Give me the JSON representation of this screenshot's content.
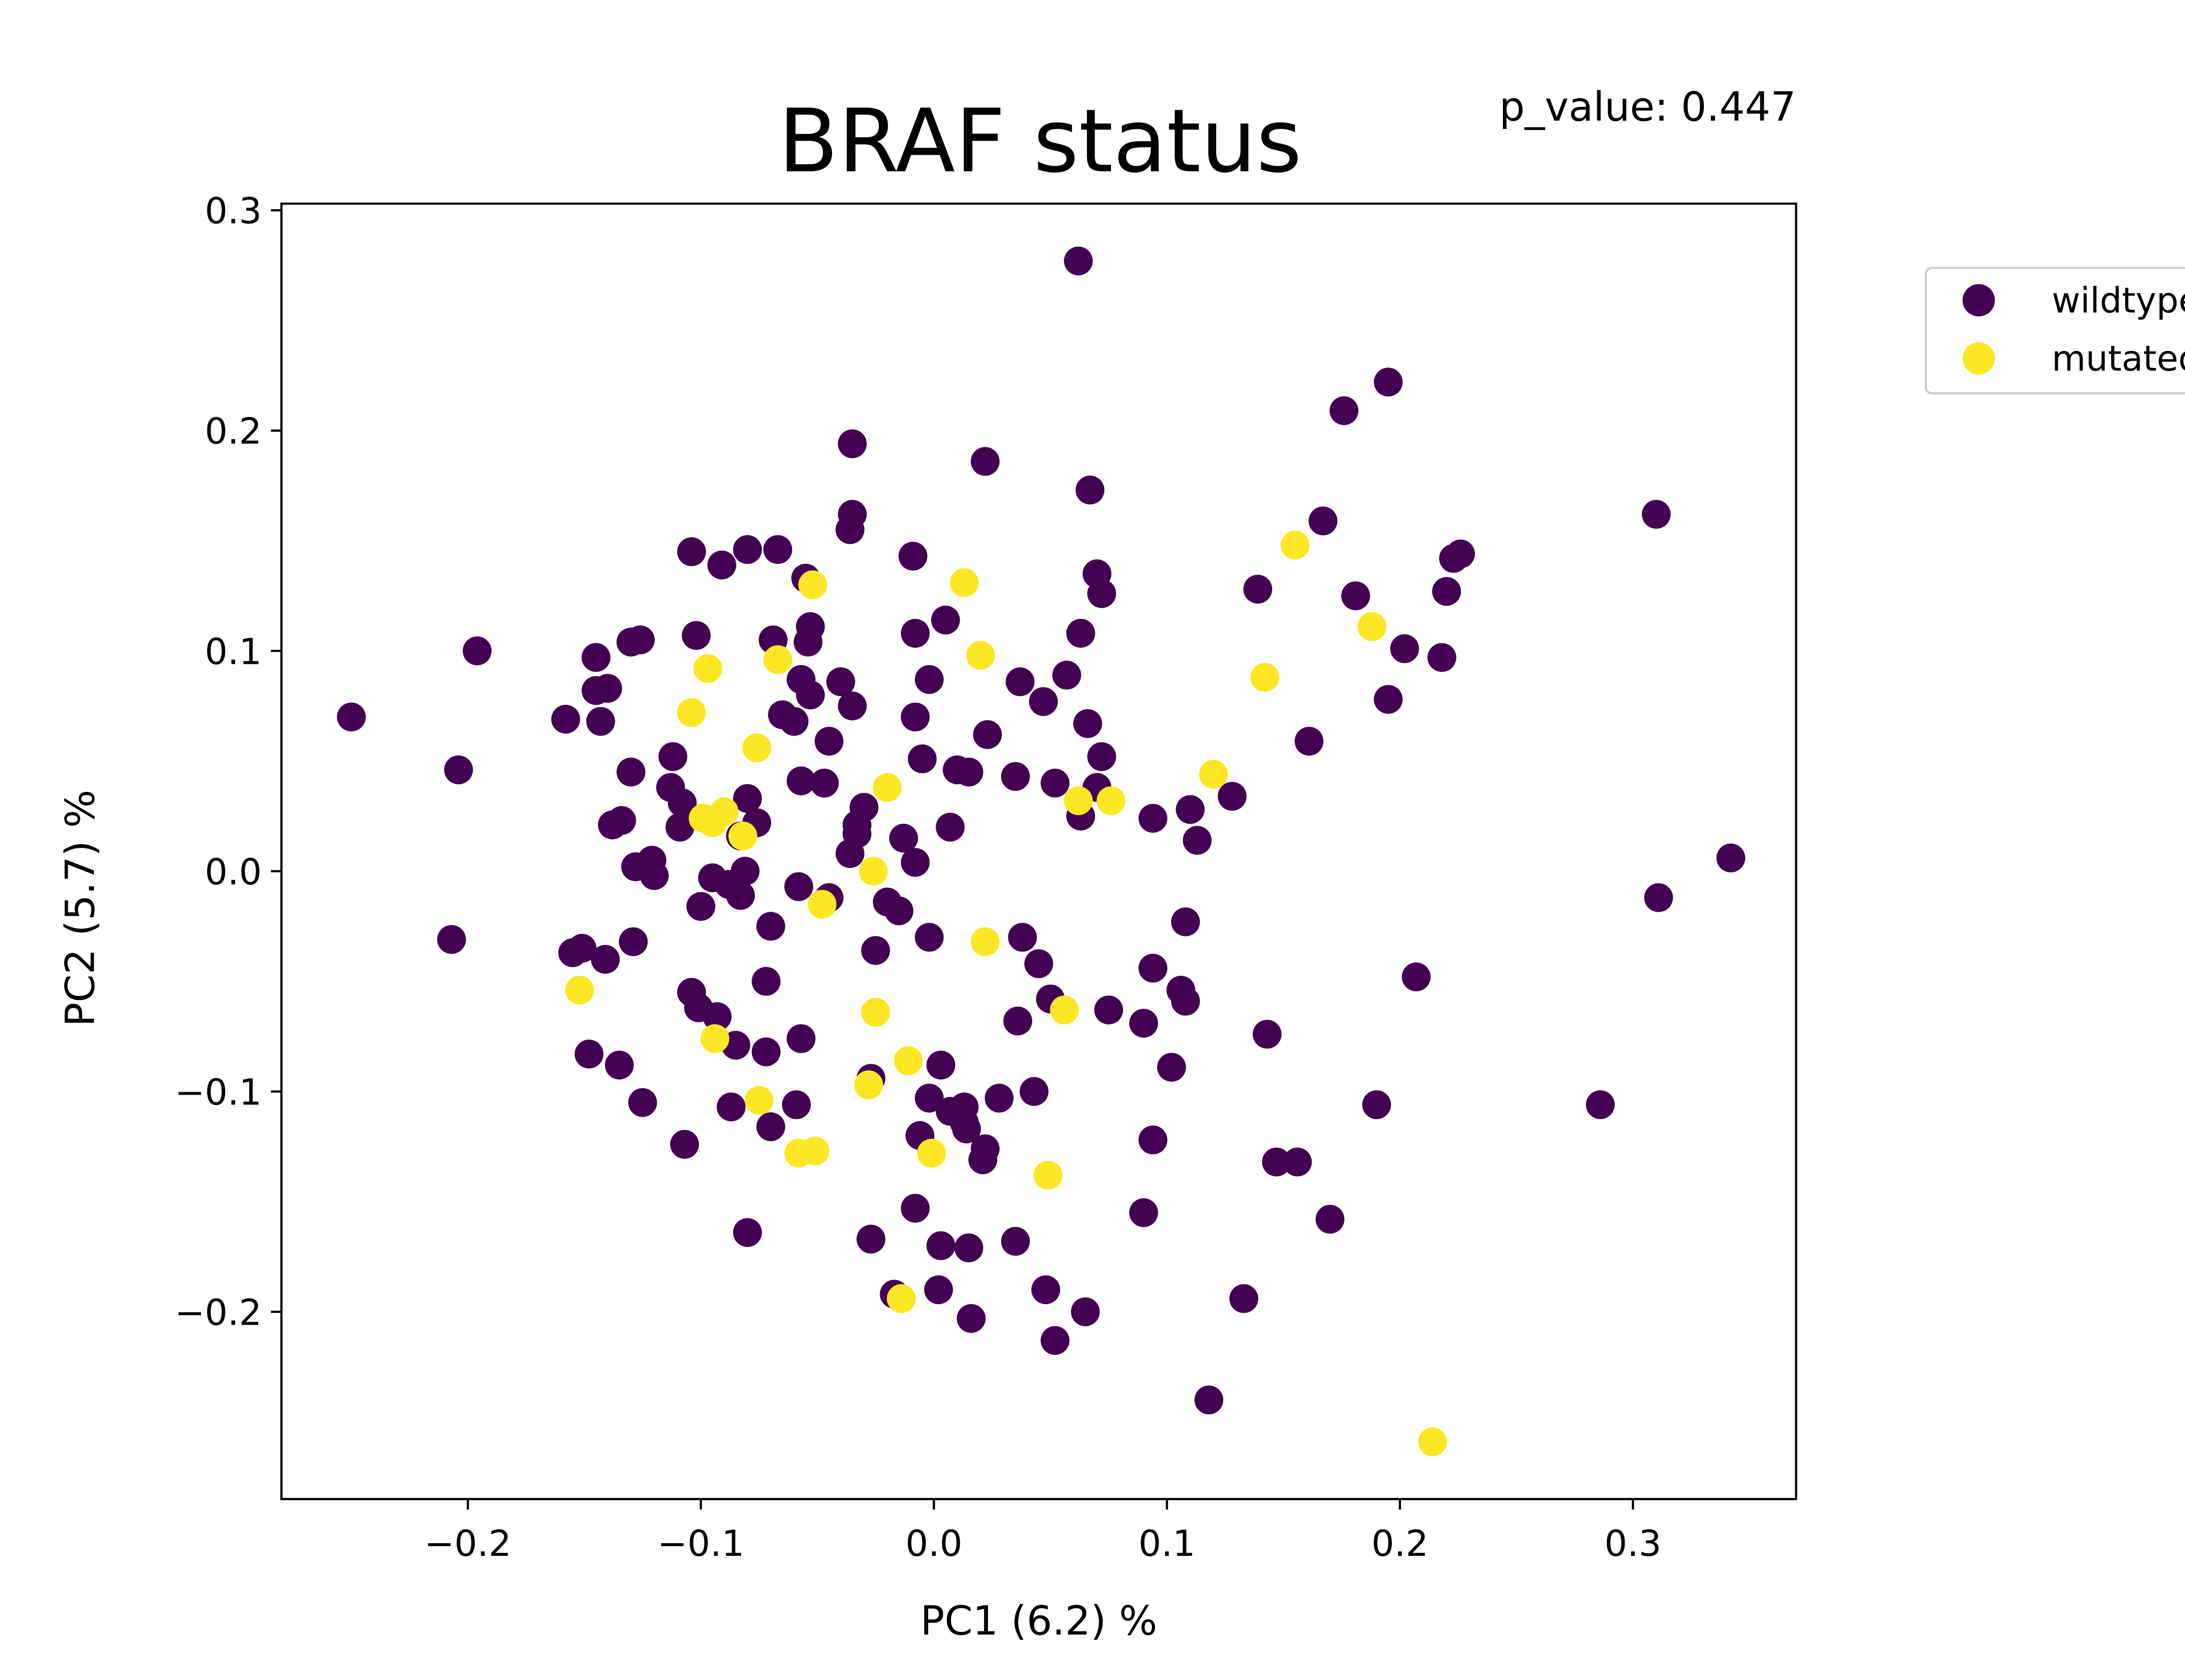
{
  "chart_data": {
    "type": "scatter",
    "title": "BRAF status",
    "annotation": "p_value: 0.447",
    "xlabel": "PC1 (6.2) %",
    "ylabel": "PC2 (5.7) %",
    "xlim": [
      -0.28,
      0.37
    ],
    "ylim": [
      -0.285,
      0.303
    ],
    "xticks": [
      -0.2,
      -0.1,
      0.0,
      0.1,
      0.2,
      0.3
    ],
    "xtick_labels": [
      "−0.2",
      "−0.1",
      "0.0",
      "0.1",
      "0.2",
      "0.3"
    ],
    "yticks": [
      -0.2,
      -0.1,
      0.0,
      0.1,
      0.2,
      0.3
    ],
    "ytick_labels": [
      "−0.2",
      "−0.1",
      "0.0",
      "0.1",
      "0.2",
      "0.3"
    ],
    "grid": false,
    "legend_position": "outside-top-right",
    "series": [
      {
        "name": "wildtype",
        "color": "#440154",
        "points": [
          [
            -0.25,
            0.07
          ],
          [
            -0.204,
            0.046
          ],
          [
            -0.196,
            0.1
          ],
          [
            -0.207,
            -0.031
          ],
          [
            -0.158,
            0.069
          ],
          [
            -0.145,
            0.097
          ],
          [
            -0.145,
            0.082
          ],
          [
            -0.14,
            0.083
          ],
          [
            -0.143,
            0.068
          ],
          [
            -0.13,
            0.104
          ],
          [
            -0.126,
            0.105
          ],
          [
            -0.13,
            0.045
          ],
          [
            -0.138,
            0.021
          ],
          [
            -0.134,
            0.023
          ],
          [
            -0.128,
            0.002
          ],
          [
            -0.121,
            0.005
          ],
          [
            -0.12,
            -0.002
          ],
          [
            -0.112,
            0.052
          ],
          [
            -0.113,
            0.038
          ],
          [
            -0.108,
            0.031
          ],
          [
            -0.109,
            0.02
          ],
          [
            -0.102,
            0.107
          ],
          [
            -0.104,
            0.145
          ],
          [
            -0.091,
            0.139
          ],
          [
            -0.08,
            0.146
          ],
          [
            -0.067,
            0.146
          ],
          [
            -0.069,
            0.105
          ],
          [
            -0.055,
            0.133
          ],
          [
            -0.053,
            0.111
          ],
          [
            -0.054,
            0.104
          ],
          [
            -0.057,
            0.087
          ],
          [
            -0.053,
            0.08
          ],
          [
            -0.04,
            0.086
          ],
          [
            -0.035,
            0.075
          ],
          [
            -0.06,
            0.068
          ],
          [
            -0.065,
            0.071
          ],
          [
            -0.045,
            0.059
          ],
          [
            -0.057,
            0.041
          ],
          [
            -0.047,
            0.04
          ],
          [
            -0.035,
            0.194
          ],
          [
            -0.035,
            0.162
          ],
          [
            -0.036,
            0.155
          ],
          [
            -0.009,
            0.143
          ],
          [
            -0.008,
            0.108
          ],
          [
            0.005,
            0.114
          ],
          [
            -0.002,
            0.087
          ],
          [
            -0.008,
            0.07
          ],
          [
            -0.005,
            0.051
          ],
          [
            0.022,
            0.186
          ],
          [
            0.067,
            0.173
          ],
          [
            0.062,
            0.277
          ],
          [
            0.07,
            0.135
          ],
          [
            0.072,
            0.126
          ],
          [
            0.063,
            0.108
          ],
          [
            0.057,
            0.089
          ],
          [
            0.037,
            0.086
          ],
          [
            0.047,
            0.077
          ],
          [
            0.066,
            0.067
          ],
          [
            0.072,
            0.052
          ],
          [
            0.023,
            0.062
          ],
          [
            0.01,
            0.046
          ],
          [
            0.015,
            0.045
          ],
          [
            0.035,
            0.043
          ],
          [
            0.052,
            0.04
          ],
          [
            0.07,
            0.038
          ],
          [
            0.063,
            0.025
          ],
          [
            0.007,
            0.02
          ],
          [
            -0.013,
            0.015
          ],
          [
            -0.008,
            0.004
          ],
          [
            -0.03,
            0.029
          ],
          [
            -0.033,
            0.021
          ],
          [
            -0.033,
            0.017
          ],
          [
            -0.036,
            0.008
          ],
          [
            -0.02,
            -0.014
          ],
          [
            -0.015,
            -0.018
          ],
          [
            -0.025,
            -0.036
          ],
          [
            -0.002,
            -0.03
          ],
          [
            -0.045,
            -0.012
          ],
          [
            -0.058,
            -0.007
          ],
          [
            -0.08,
            0.033
          ],
          [
            -0.076,
            0.022
          ],
          [
            -0.083,
            0.016
          ],
          [
            -0.081,
            0.0
          ],
          [
            -0.088,
            -0.006
          ],
          [
            -0.083,
            -0.011
          ],
          [
            -0.1,
            -0.016
          ],
          [
            -0.07,
            -0.025
          ],
          [
            -0.095,
            -0.003
          ],
          [
            -0.155,
            -0.037
          ],
          [
            -0.151,
            -0.035
          ],
          [
            -0.141,
            -0.04
          ],
          [
            -0.129,
            -0.032
          ],
          [
            -0.104,
            -0.055
          ],
          [
            -0.101,
            -0.062
          ],
          [
            -0.093,
            -0.066
          ],
          [
            -0.072,
            -0.05
          ],
          [
            -0.085,
            -0.079
          ],
          [
            -0.072,
            -0.082
          ],
          [
            -0.057,
            -0.076
          ],
          [
            -0.148,
            -0.083
          ],
          [
            -0.135,
            -0.088
          ],
          [
            -0.125,
            -0.105
          ],
          [
            -0.087,
            -0.107
          ],
          [
            -0.07,
            -0.116
          ],
          [
            -0.059,
            -0.106
          ],
          [
            -0.107,
            -0.124
          ],
          [
            -0.08,
            -0.164
          ],
          [
            -0.027,
            -0.094
          ],
          [
            0.003,
            -0.088
          ],
          [
            -0.006,
            -0.12
          ],
          [
            -0.002,
            -0.103
          ],
          [
            0.007,
            -0.109
          ],
          [
            0.013,
            -0.107
          ],
          [
            0.013,
            -0.114
          ],
          [
            0.014,
            -0.117
          ],
          [
            0.028,
            -0.103
          ],
          [
            0.043,
            -0.1
          ],
          [
            0.022,
            -0.126
          ],
          [
            0.021,
            -0.131
          ],
          [
            0.038,
            -0.03
          ],
          [
            0.045,
            -0.042
          ],
          [
            0.05,
            -0.058
          ],
          [
            0.036,
            -0.068
          ],
          [
            0.075,
            -0.063
          ],
          [
            0.094,
            -0.044
          ],
          [
            0.106,
            -0.054
          ],
          [
            0.108,
            -0.059
          ],
          [
            0.09,
            -0.069
          ],
          [
            0.108,
            -0.023
          ],
          [
            0.102,
            -0.089
          ],
          [
            0.094,
            -0.122
          ],
          [
            0.09,
            -0.155
          ],
          [
            -0.008,
            -0.153
          ],
          [
            -0.027,
            -0.167
          ],
          [
            0.003,
            -0.17
          ],
          [
            0.015,
            -0.171
          ],
          [
            0.035,
            -0.168
          ],
          [
            -0.017,
            -0.192
          ],
          [
            0.002,
            -0.19
          ],
          [
            0.016,
            -0.203
          ],
          [
            0.048,
            -0.19
          ],
          [
            0.052,
            -0.213
          ],
          [
            0.065,
            -0.2
          ],
          [
            0.118,
            -0.24
          ],
          [
            0.133,
            -0.194
          ],
          [
            0.094,
            0.024
          ],
          [
            0.11,
            0.028
          ],
          [
            0.113,
            0.014
          ],
          [
            0.128,
            0.034
          ],
          [
            0.139,
            0.128
          ],
          [
            0.161,
            0.059
          ],
          [
            0.167,
            0.159
          ],
          [
            0.176,
            0.209
          ],
          [
            0.181,
            0.125
          ],
          [
            0.195,
            0.222
          ],
          [
            0.195,
            0.078
          ],
          [
            0.202,
            0.101
          ],
          [
            0.218,
            0.097
          ],
          [
            0.22,
            0.127
          ],
          [
            0.223,
            0.142
          ],
          [
            0.226,
            0.144
          ],
          [
            0.31,
            0.162
          ],
          [
            0.311,
            -0.012
          ],
          [
            0.342,
            0.006
          ],
          [
            0.286,
            -0.106
          ],
          [
            0.207,
            -0.048
          ],
          [
            0.19,
            -0.106
          ],
          [
            0.143,
            -0.074
          ],
          [
            0.147,
            -0.132
          ],
          [
            0.156,
            -0.132
          ],
          [
            0.17,
            -0.158
          ]
        ]
      },
      {
        "name": "mutated",
        "color": "#fde725",
        "points": [
          [
            -0.052,
            0.13
          ],
          [
            0.013,
            0.131
          ],
          [
            0.155,
            0.148
          ],
          [
            0.188,
            0.111
          ],
          [
            -0.097,
            0.092
          ],
          [
            -0.067,
            0.096
          ],
          [
            0.02,
            0.098
          ],
          [
            0.142,
            0.088
          ],
          [
            -0.104,
            0.072
          ],
          [
            -0.076,
            0.056
          ],
          [
            -0.02,
            0.038
          ],
          [
            0.12,
            0.044
          ],
          [
            0.062,
            0.032
          ],
          [
            0.076,
            0.032
          ],
          [
            -0.099,
            0.024
          ],
          [
            -0.095,
            0.022
          ],
          [
            -0.09,
            0.027
          ],
          [
            -0.082,
            0.016
          ],
          [
            -0.026,
            0.0
          ],
          [
            -0.048,
            -0.015
          ],
          [
            0.022,
            -0.032
          ],
          [
            -0.152,
            -0.054
          ],
          [
            0.056,
            -0.063
          ],
          [
            -0.025,
            -0.064
          ],
          [
            -0.094,
            -0.076
          ],
          [
            -0.011,
            -0.086
          ],
          [
            -0.075,
            -0.104
          ],
          [
            -0.028,
            -0.097
          ],
          [
            -0.058,
            -0.128
          ],
          [
            -0.051,
            -0.127
          ],
          [
            -0.001,
            -0.128
          ],
          [
            0.049,
            -0.138
          ],
          [
            -0.014,
            -0.194
          ],
          [
            0.214,
            -0.259
          ]
        ]
      }
    ]
  }
}
